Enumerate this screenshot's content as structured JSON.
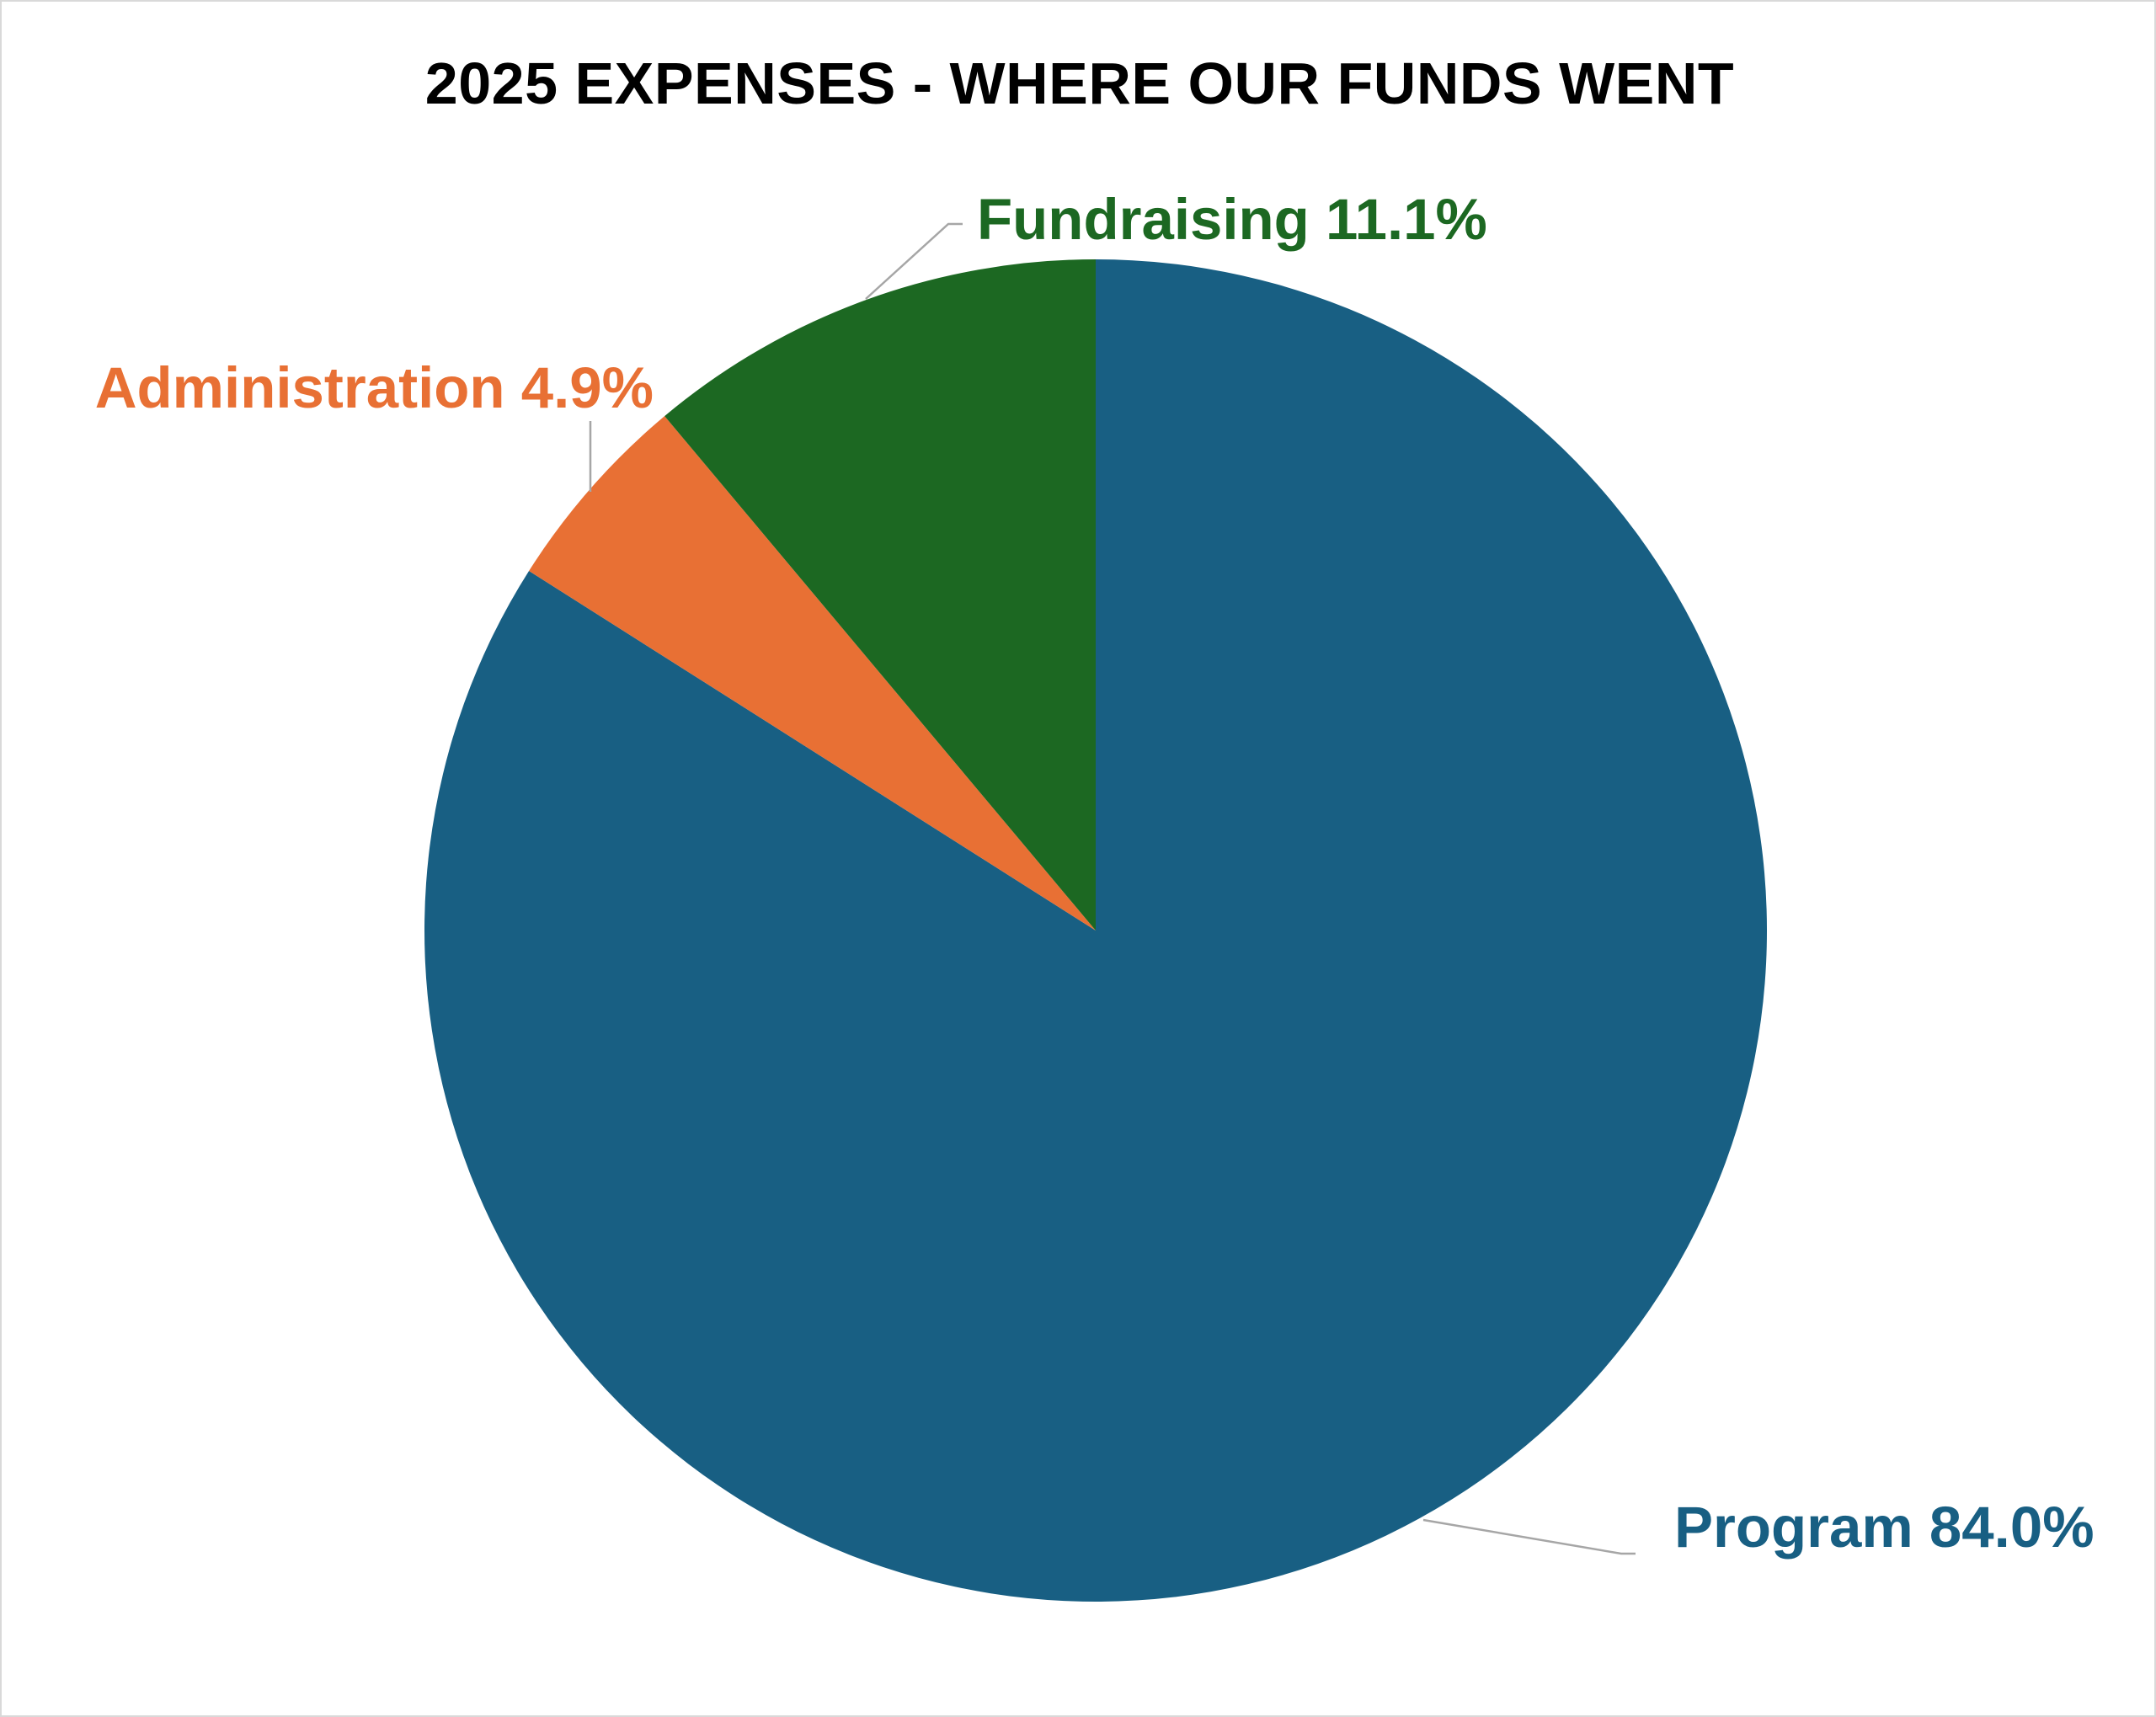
{
  "chart_data": {
    "type": "pie",
    "title": "2025 EXPENSES - WHERE OUR FUNDS WENT",
    "slices": [
      {
        "label": "Program",
        "value": 84.0,
        "display": "Program 84.0%",
        "color": "#185f83"
      },
      {
        "label": "Administration",
        "value": 4.9,
        "display": "Administration 4.9%",
        "color": "#e87034"
      },
      {
        "label": "Fundraising",
        "value": 11.1,
        "display": "Fundraising 11.1%",
        "color": "#1c6822"
      }
    ],
    "start_angle": "12 o'clock",
    "direction": "clockwise",
    "legend": "none",
    "data_labels": "outside with leader lines"
  }
}
